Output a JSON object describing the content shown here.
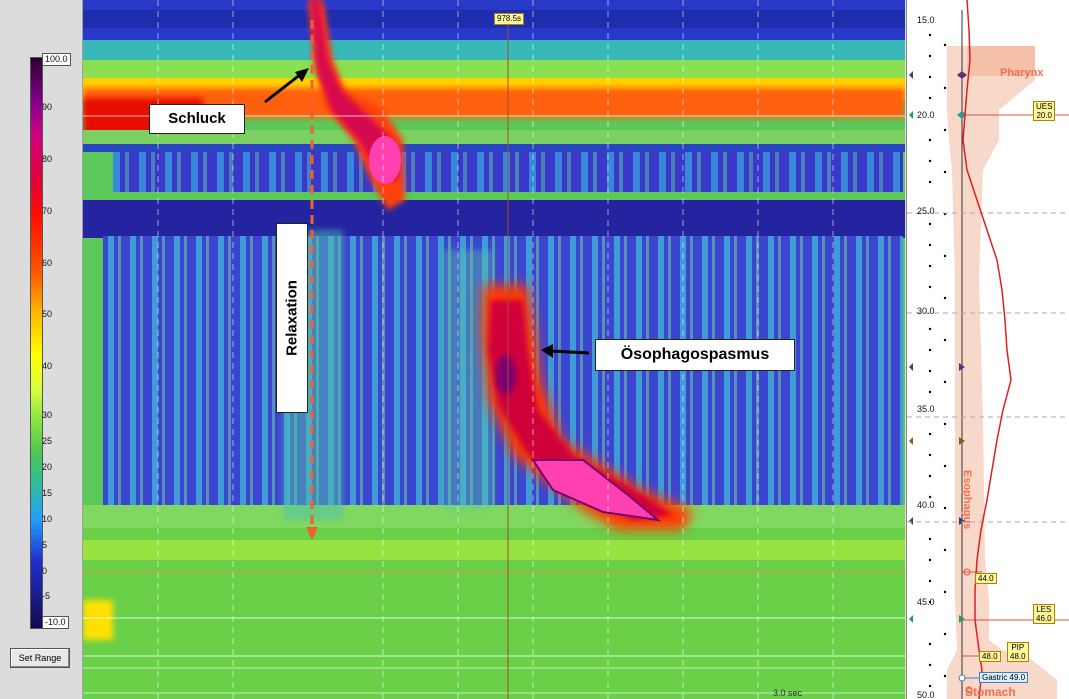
{
  "colorbar": {
    "max_label": "100.0",
    "min_label": "-10.0",
    "ticks": [
      "90",
      "80",
      "70",
      "60",
      "50",
      "40",
      "30",
      "25",
      "20",
      "15",
      "10",
      "5",
      "0",
      "-5"
    ]
  },
  "set_range_label": "Set Range",
  "plot": {
    "cursor_time": "978.5s",
    "time_scale": "3.0 sec",
    "annotations": {
      "swallow": "Schluck",
      "relaxation": "Relaxation",
      "spasm": "Ösophagospasmus"
    }
  },
  "right_panel": {
    "depths": [
      "15.0",
      "20.0",
      "25.0",
      "30.0",
      "35.0",
      "40.0",
      "45.0",
      "50.0"
    ],
    "anatomy": {
      "pharynx": "Pharynx",
      "esophagus": "Esophagus",
      "stomach": "Stomach"
    },
    "markers": {
      "ues_name": "UES",
      "ues_value": "20.0",
      "marker_44": "44.0",
      "les_name": "LES",
      "les_value": "46.0",
      "m48": "48.0",
      "pip_name": "PIP",
      "pip_value": "48.0",
      "gastric": "Gastric 49.0"
    }
  },
  "colors": {
    "accent_annotation": "#f07050",
    "marker_fill": "#fff79a",
    "dashed_arrow": "#f06030"
  }
}
